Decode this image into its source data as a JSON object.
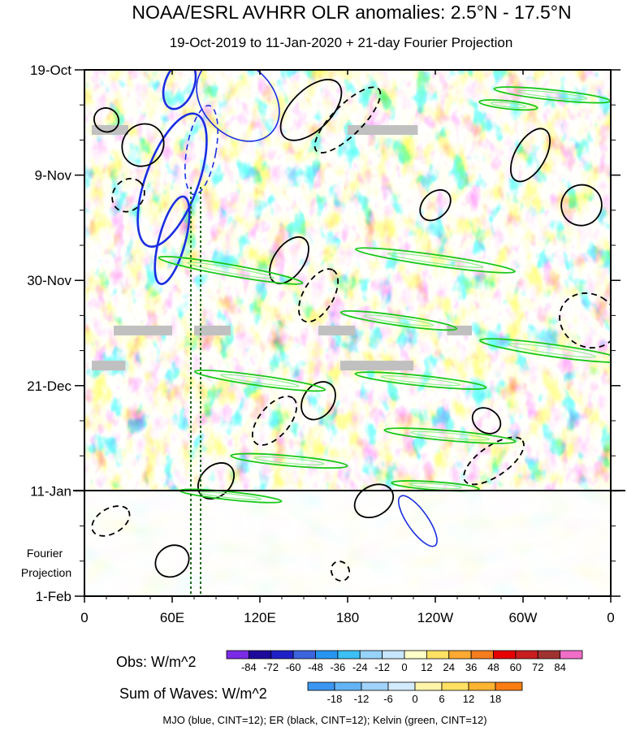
{
  "chart_data": {
    "type": "heatmap",
    "title": "NOAA/ESRL AVHRR OLR anomalies: 2.5°N - 17.5°N",
    "subtitle": "19-Oct-2019 to 11-Jan-2020 + 21-day Fourier Projection",
    "x_ticks": [
      "0",
      "60E",
      "120E",
      "180",
      "120W",
      "60W",
      "0"
    ],
    "x_tick_lon": [
      0,
      60,
      120,
      180,
      240,
      300,
      360
    ],
    "y_ticks": [
      "19-Oct",
      "9-Nov",
      "30-Nov",
      "21-Dec",
      "11-Jan",
      "1-Feb"
    ],
    "y_tick_day": [
      0,
      21,
      42,
      63,
      84,
      105
    ],
    "projection_label": "Fourier\nProjection",
    "projection_start_day": 84,
    "day_range": [
      0,
      105
    ],
    "lon_range": [
      0,
      360
    ],
    "obs_colorbar": {
      "label": "Obs: W/m^2",
      "levels": [
        "-84",
        "-72",
        "-60",
        "-48",
        "-36",
        "-24",
        "-12",
        "0",
        "12",
        "24",
        "36",
        "48",
        "60",
        "72",
        "84"
      ],
      "colors": [
        "#7a2be6",
        "#1d0a9c",
        "#2020c8",
        "#3c64dc",
        "#2896f0",
        "#3cc0f5",
        "#96d2fa",
        "#c8e6ff",
        "#ffffc8",
        "#ffe164",
        "#ffaa32",
        "#f57d1e",
        "#e60000",
        "#c81e1e",
        "#a03232",
        "#f06ec8"
      ]
    },
    "waves_colorbar": {
      "label": "Sum of Waves: W/m^2",
      "levels": [
        "-18",
        "-12",
        "-6",
        "0",
        "6",
        "12",
        "18"
      ],
      "colors": [
        "#3c96f0",
        "#64b4f5",
        "#a0d2fa",
        "#d2ebff",
        "#fff5aa",
        "#ffe164",
        "#ffb432",
        "#fa7d14"
      ]
    },
    "footer": "MJO (blue, CINT=12); ER (black, CINT=12); Kelvin (green, CINT=12)",
    "missing_data_bands": [
      {
        "day": 12,
        "lon_start": 5,
        "lon_end": 30
      },
      {
        "day": 12,
        "lon_start": 180,
        "lon_end": 228
      },
      {
        "day": 52,
        "lon_start": 20,
        "lon_end": 60
      },
      {
        "day": 52,
        "lon_start": 75,
        "lon_end": 100
      },
      {
        "day": 52,
        "lon_start": 160,
        "lon_end": 185
      },
      {
        "day": 52,
        "lon_start": 248,
        "lon_end": 265
      },
      {
        "day": 59,
        "lon_start": 5,
        "lon_end": 28
      },
      {
        "day": 59,
        "lon_start": 175,
        "lon_end": 225
      }
    ],
    "mjo_contours": [
      {
        "lon": 60,
        "day": 22,
        "dlon": 18,
        "dday": 14,
        "angle": 20,
        "dashed": false,
        "emph": 1
      },
      {
        "lon": 65,
        "day": 3,
        "dlon": 10,
        "dday": 5,
        "angle": 20,
        "dashed": false,
        "emph": 1
      },
      {
        "lon": 80,
        "day": 16,
        "dlon": 10,
        "dday": 9,
        "angle": 10,
        "dashed": true,
        "emph": 0
      },
      {
        "lon": 105,
        "day": 6,
        "dlon": 32,
        "dday": 7,
        "angle": 45,
        "dashed": false,
        "emph": 0
      },
      {
        "lon": 60,
        "day": 34,
        "dlon": 9,
        "dday": 9,
        "angle": 15,
        "dashed": false,
        "emph": 1
      },
      {
        "lon": 228,
        "day": 90,
        "dlon": 7,
        "dday": 6,
        "angle": -35,
        "dashed": false,
        "emph": 0
      }
    ],
    "er_contours": [
      {
        "lon": 155,
        "day": 8,
        "dlon": 26,
        "dday": 4,
        "angle": -45,
        "dashed": false
      },
      {
        "lon": 180,
        "day": 10,
        "dlon": 30,
        "dday": 3,
        "angle": -45,
        "dashed": true
      },
      {
        "lon": 40,
        "day": 15,
        "dlon": 15,
        "dday": 4,
        "angle": -50,
        "dashed": false
      },
      {
        "lon": 15,
        "day": 10,
        "dlon": 8,
        "dday": 2.5,
        "angle": -55,
        "dashed": false
      },
      {
        "lon": 30,
        "day": 25,
        "dlon": 12,
        "dday": 3,
        "angle": -50,
        "dashed": true
      },
      {
        "lon": 140,
        "day": 38,
        "dlon": 18,
        "dday": 3,
        "angle": -55,
        "dashed": false
      },
      {
        "lon": 160,
        "day": 45,
        "dlon": 20,
        "dday": 3,
        "angle": -60,
        "dashed": true
      },
      {
        "lon": 130,
        "day": 70,
        "dlon": 20,
        "dday": 3,
        "angle": -50,
        "dashed": true
      },
      {
        "lon": 160,
        "day": 66,
        "dlon": 14,
        "dday": 3,
        "angle": -55,
        "dashed": false
      },
      {
        "lon": 305,
        "day": 17,
        "dlon": 20,
        "dday": 3,
        "angle": -60,
        "dashed": false
      },
      {
        "lon": 340,
        "day": 27,
        "dlon": 14,
        "dday": 4,
        "angle": -55,
        "dashed": false
      },
      {
        "lon": 345,
        "day": 50,
        "dlon": 18,
        "dday": 6,
        "angle": -60,
        "dashed": true
      },
      {
        "lon": 280,
        "day": 78,
        "dlon": 24,
        "dday": 3,
        "angle": -35,
        "dashed": true
      },
      {
        "lon": 90,
        "day": 82,
        "dlon": 14,
        "dday": 3,
        "angle": -45,
        "dashed": false
      },
      {
        "lon": 240,
        "day": 27,
        "dlon": 12,
        "dday": 2.5,
        "angle": -45,
        "dashed": false
      },
      {
        "lon": 60,
        "day": 98,
        "dlon": 12,
        "dday": 3,
        "angle": -35,
        "dashed": false
      },
      {
        "lon": 18,
        "day": 90,
        "dlon": 14,
        "dday": 2.5,
        "angle": -30,
        "dashed": true
      },
      {
        "lon": 198,
        "day": 86,
        "dlon": 14,
        "dday": 3,
        "angle": -30,
        "dashed": false
      },
      {
        "lon": 275,
        "day": 70,
        "dlon": 8,
        "dday": 3,
        "angle": -55,
        "dashed": false
      },
      {
        "lon": 175,
        "day": 100,
        "dlon": 6,
        "dday": 2,
        "angle": -30,
        "dashed": true
      }
    ],
    "kelvin_contours": [
      {
        "lon": 320,
        "day": 5,
        "dlon": 40,
        "dday": 1,
        "angle": 6
      },
      {
        "lon": 290,
        "day": 7,
        "dlon": 20,
        "dday": 0.8,
        "angle": 6
      },
      {
        "lon": 100,
        "day": 40,
        "dlon": 50,
        "dday": 1.1,
        "angle": 10
      },
      {
        "lon": 240,
        "day": 38,
        "dlon": 55,
        "dday": 1.1,
        "angle": 8
      },
      {
        "lon": 215,
        "day": 50,
        "dlon": 40,
        "dday": 1,
        "angle": 8
      },
      {
        "lon": 320,
        "day": 56,
        "dlon": 50,
        "dday": 1.2,
        "angle": 8
      },
      {
        "lon": 120,
        "day": 62,
        "dlon": 45,
        "dday": 1,
        "angle": 8
      },
      {
        "lon": 230,
        "day": 62,
        "dlon": 45,
        "dday": 1,
        "angle": 6
      },
      {
        "lon": 250,
        "day": 73,
        "dlon": 45,
        "dday": 1,
        "angle": 5
      },
      {
        "lon": 140,
        "day": 78,
        "dlon": 40,
        "dday": 1,
        "angle": 5
      },
      {
        "lon": 100,
        "day": 85,
        "dlon": 35,
        "dday": 0.8,
        "angle": 6
      },
      {
        "lon": 240,
        "day": 83,
        "dlon": 30,
        "dday": 0.8,
        "angle": 4
      }
    ]
  }
}
